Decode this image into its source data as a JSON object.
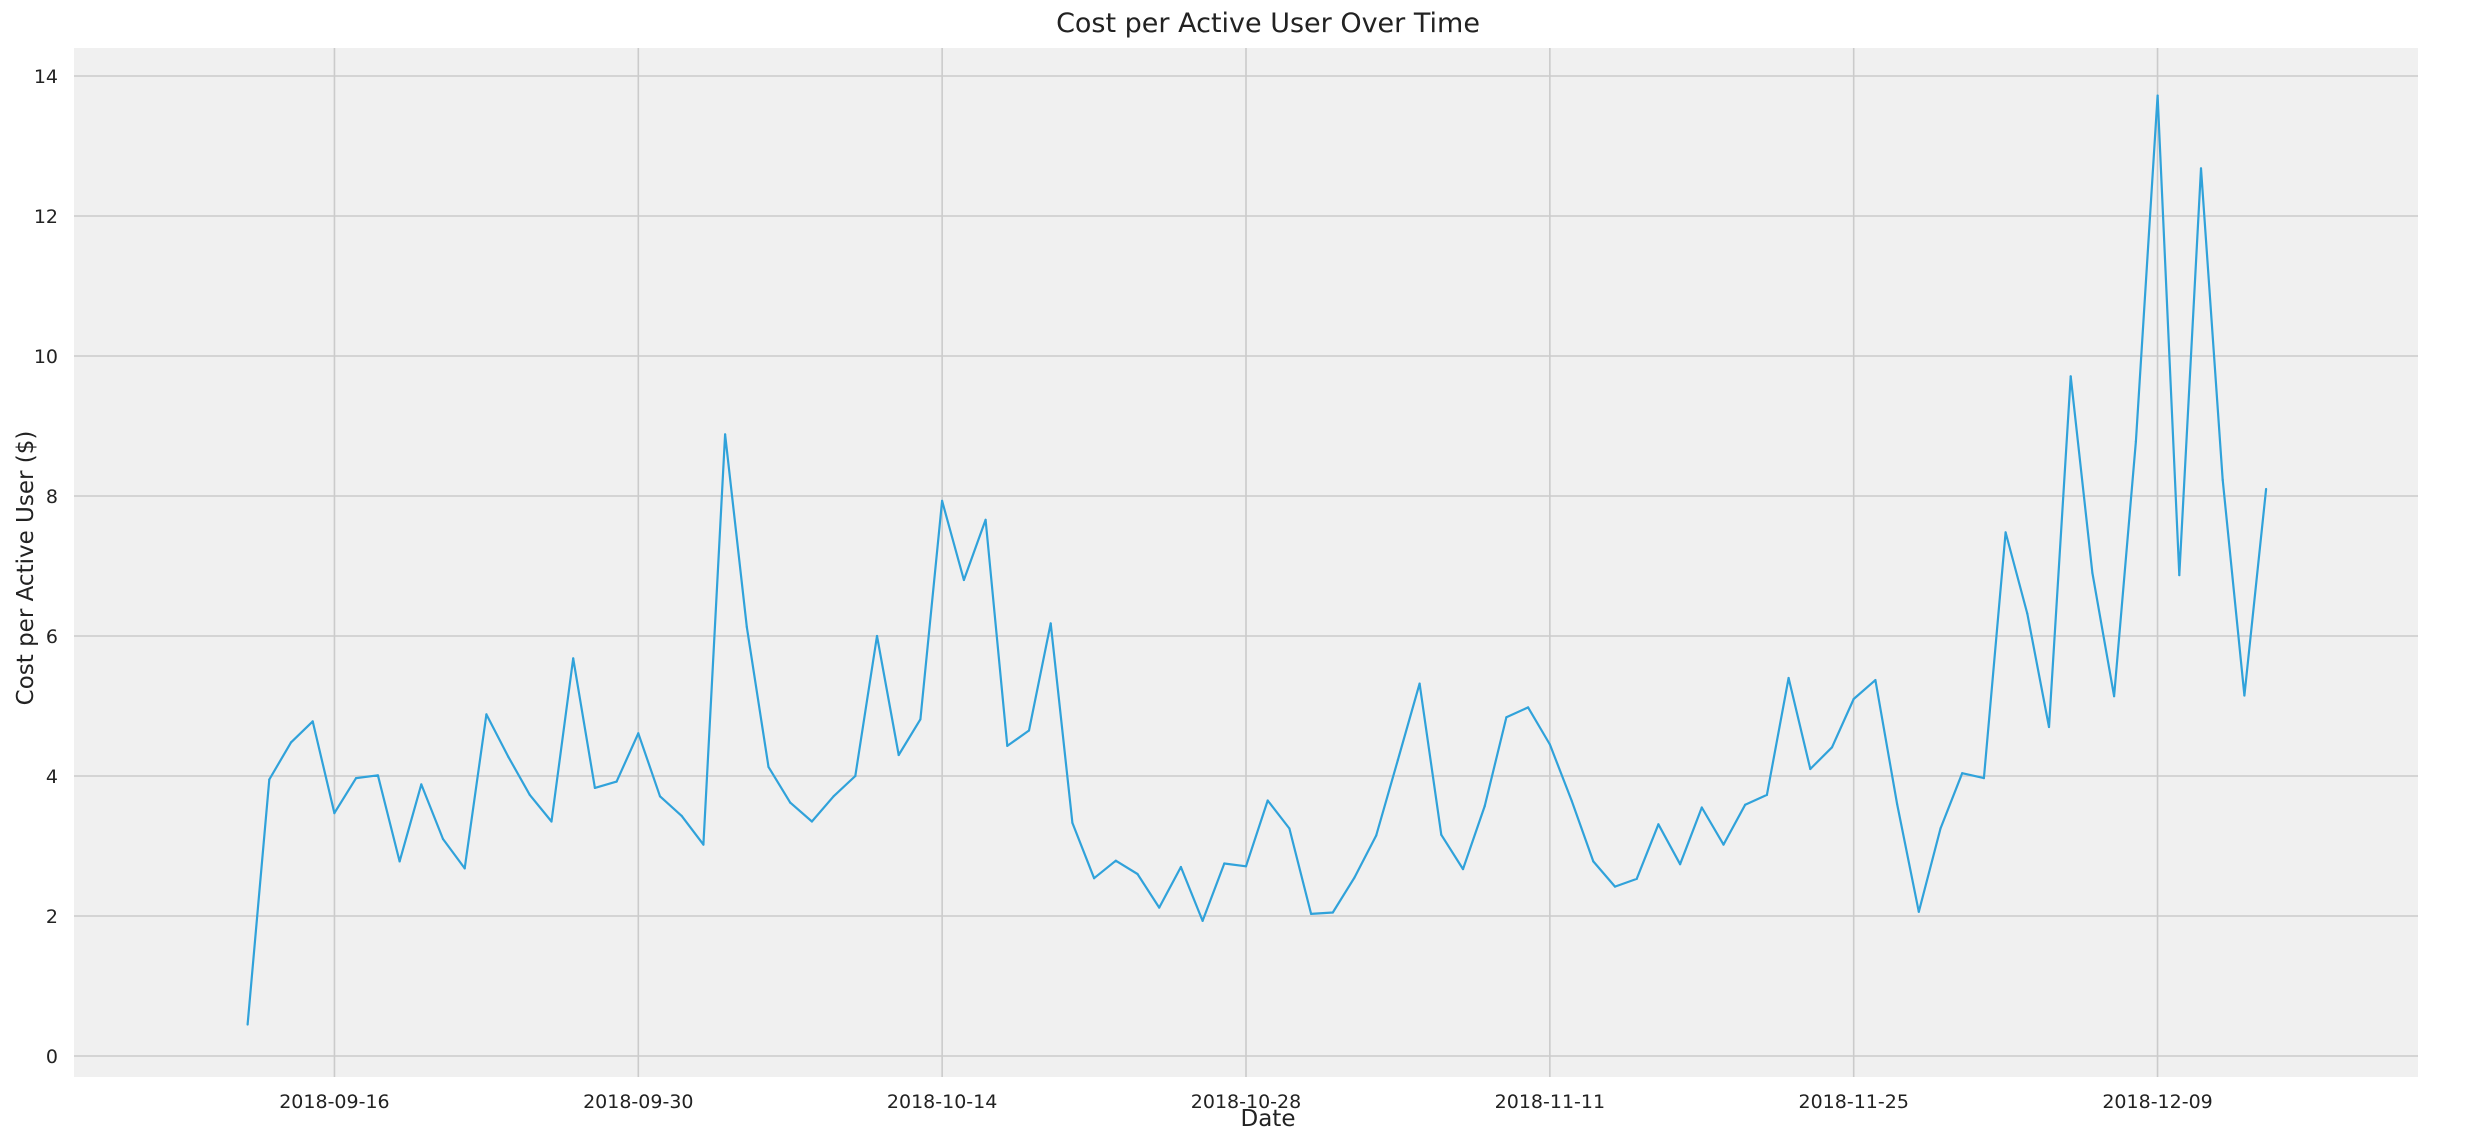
{
  "chart_data": {
    "type": "line",
    "title": "Cost per Active User Over Time",
    "xlabel": "Date",
    "ylabel": "Cost per Active User ($)",
    "style": {
      "background_color": "#f0f0f0",
      "line_color": "#30a2da",
      "grid_color": "#cbcbcb"
    },
    "grid": true,
    "legend": "none",
    "xlim": [
      "2018-09-04",
      "2018-12-21"
    ],
    "ylim": [
      -0.3,
      14.4
    ],
    "x_ticks": [
      "2018-09-16",
      "2018-09-30",
      "2018-10-14",
      "2018-10-28",
      "2018-11-11",
      "2018-11-25",
      "2018-12-09"
    ],
    "y_ticks": [
      0,
      2,
      4,
      6,
      8,
      10,
      12,
      14
    ],
    "x": [
      "2018-09-12",
      "2018-09-13",
      "2018-09-14",
      "2018-09-15",
      "2018-09-16",
      "2018-09-17",
      "2018-09-18",
      "2018-09-19",
      "2018-09-20",
      "2018-09-21",
      "2018-09-22",
      "2018-09-23",
      "2018-09-24",
      "2018-09-25",
      "2018-09-26",
      "2018-09-27",
      "2018-09-28",
      "2018-09-29",
      "2018-09-30",
      "2018-10-01",
      "2018-10-02",
      "2018-10-03",
      "2018-10-04",
      "2018-10-05",
      "2018-10-06",
      "2018-10-07",
      "2018-10-08",
      "2018-10-09",
      "2018-10-10",
      "2018-10-11",
      "2018-10-12",
      "2018-10-13",
      "2018-10-14",
      "2018-10-15",
      "2018-10-16",
      "2018-10-17",
      "2018-10-18",
      "2018-10-19",
      "2018-10-20",
      "2018-10-21",
      "2018-10-22",
      "2018-10-23",
      "2018-10-24",
      "2018-10-25",
      "2018-10-26",
      "2018-10-27",
      "2018-10-28",
      "2018-10-29",
      "2018-10-30",
      "2018-10-31",
      "2018-11-01",
      "2018-11-02",
      "2018-11-03",
      "2018-11-04",
      "2018-11-05",
      "2018-11-06",
      "2018-11-07",
      "2018-11-08",
      "2018-11-09",
      "2018-11-10",
      "2018-11-11",
      "2018-11-12",
      "2018-11-13",
      "2018-11-14",
      "2018-11-15",
      "2018-11-16",
      "2018-11-17",
      "2018-11-18",
      "2018-11-19",
      "2018-11-20",
      "2018-11-21",
      "2018-11-22",
      "2018-11-23",
      "2018-11-24",
      "2018-11-25",
      "2018-11-26",
      "2018-11-27",
      "2018-11-28",
      "2018-11-29",
      "2018-11-30",
      "2018-12-01",
      "2018-12-02",
      "2018-12-03",
      "2018-12-04",
      "2018-12-05",
      "2018-12-06",
      "2018-12-07",
      "2018-12-08",
      "2018-12-09",
      "2018-12-10",
      "2018-12-11",
      "2018-12-12",
      "2018-12-13",
      "2018-12-14"
    ],
    "values": [
      0.45,
      3.95,
      4.48,
      4.78,
      3.47,
      3.97,
      4.01,
      2.78,
      3.88,
      3.1,
      2.68,
      4.88,
      4.28,
      3.73,
      3.35,
      5.68,
      3.83,
      3.92,
      4.61,
      3.71,
      3.43,
      3.02,
      8.88,
      6.13,
      4.13,
      3.62,
      3.35,
      3.71,
      4.0,
      6.0,
      4.3,
      4.81,
      7.93,
      6.8,
      7.66,
      4.43,
      4.65,
      6.18,
      3.33,
      2.54,
      2.79,
      2.6,
      2.12,
      2.7,
      1.93,
      2.75,
      2.71,
      3.65,
      3.25,
      2.03,
      2.05,
      2.55,
      3.15,
      4.23,
      5.32,
      3.16,
      2.67,
      3.57,
      4.84,
      4.98,
      4.45,
      3.65,
      2.78,
      2.42,
      2.53,
      3.31,
      2.74,
      3.55,
      3.02,
      3.59,
      3.73,
      5.4,
      4.1,
      4.41,
      5.1,
      5.37,
      3.6,
      2.06,
      3.25,
      4.04,
      3.97,
      7.48,
      6.32,
      4.7,
      9.71,
      6.9,
      5.14,
      8.78,
      13.72,
      6.87,
      12.68,
      8.23,
      5.15,
      8.1
    ]
  }
}
